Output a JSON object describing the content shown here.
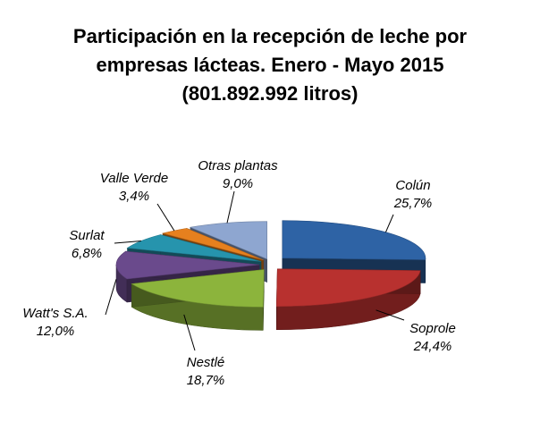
{
  "chart_data": {
    "type": "pie",
    "title_lines": [
      "Participación en la recepción de leche por",
      "empresas lácteas. Enero - Mayo  2015",
      "(801.892.992  litros)"
    ],
    "slices": [
      {
        "name": "Colún",
        "value": 25.7,
        "label": "25,7%",
        "color": "#2E63A5"
      },
      {
        "name": "Soprole",
        "value": 24.4,
        "label": "24,4%",
        "color": "#B8312F"
      },
      {
        "name": "Nestlé",
        "value": 18.7,
        "label": "18,7%",
        "color": "#8CB43C"
      },
      {
        "name": "Watt's S.A.",
        "value": 12.0,
        "label": "12,0%",
        "color": "#6A4A8C"
      },
      {
        "name": "Surlat",
        "value": 6.8,
        "label": "6,8%",
        "color": "#2694AD"
      },
      {
        "name": "Valle Verde",
        "value": 3.4,
        "label": "3,4%",
        "color": "#E6801E"
      },
      {
        "name": "Otras plantas",
        "value": 9.0,
        "label": "9,0%",
        "color": "#8EA6D0"
      }
    ],
    "style": "3d-pie-exploded"
  }
}
